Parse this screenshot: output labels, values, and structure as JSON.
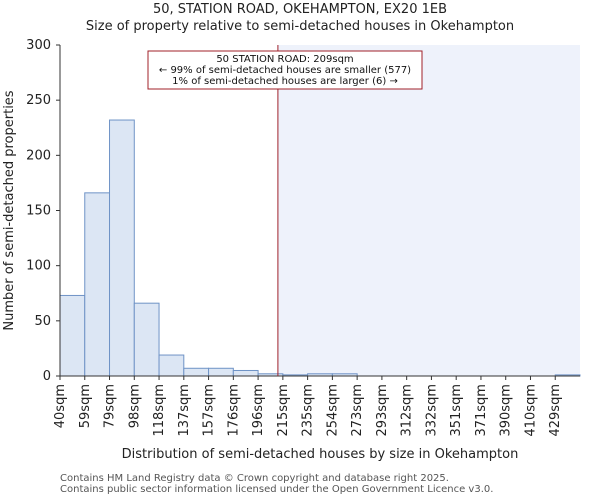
{
  "chart_data": {
    "type": "bar",
    "title": "50, STATION ROAD, OKEHAMPTON, EX20 1EB",
    "subtitle": "Size of property relative to semi-detached houses in Okehampton",
    "xlabel": "Distribution of semi-detached houses by size in Okehampton",
    "ylabel": "Number of semi-detached properties",
    "ylim": [
      0,
      300
    ],
    "yticks": [
      0,
      50,
      100,
      150,
      200,
      250,
      300
    ],
    "categories": [
      "40sqm",
      "59sqm",
      "79sqm",
      "98sqm",
      "118sqm",
      "137sqm",
      "157sqm",
      "176sqm",
      "196sqm",
      "215sqm",
      "235sqm",
      "254sqm",
      "273sqm",
      "293sqm",
      "312sqm",
      "332sqm",
      "351sqm",
      "371sqm",
      "390sqm",
      "410sqm",
      "429sqm"
    ],
    "values": [
      73,
      166,
      232,
      66,
      19,
      7,
      7,
      5,
      2,
      1,
      2,
      2,
      0,
      0,
      0,
      0,
      0,
      0,
      0,
      0,
      1
    ],
    "marker": {
      "bin_position": 8.8,
      "label": "50 STATION ROAD: 209sqm",
      "line2": "← 99% of semi-detached houses are smaller (577)",
      "line3": "1% of semi-detached houses are larger (6) →"
    },
    "colors": {
      "bar_fill": "#dce6f4",
      "bar_edge": "#6f93c6",
      "marker": "#a0202a",
      "highlight": "#eef2fb"
    }
  },
  "footer": {
    "line1": "Contains HM Land Registry data © Crown copyright and database right 2025.",
    "line2": "Contains public sector information licensed under the Open Government Licence v3.0."
  }
}
